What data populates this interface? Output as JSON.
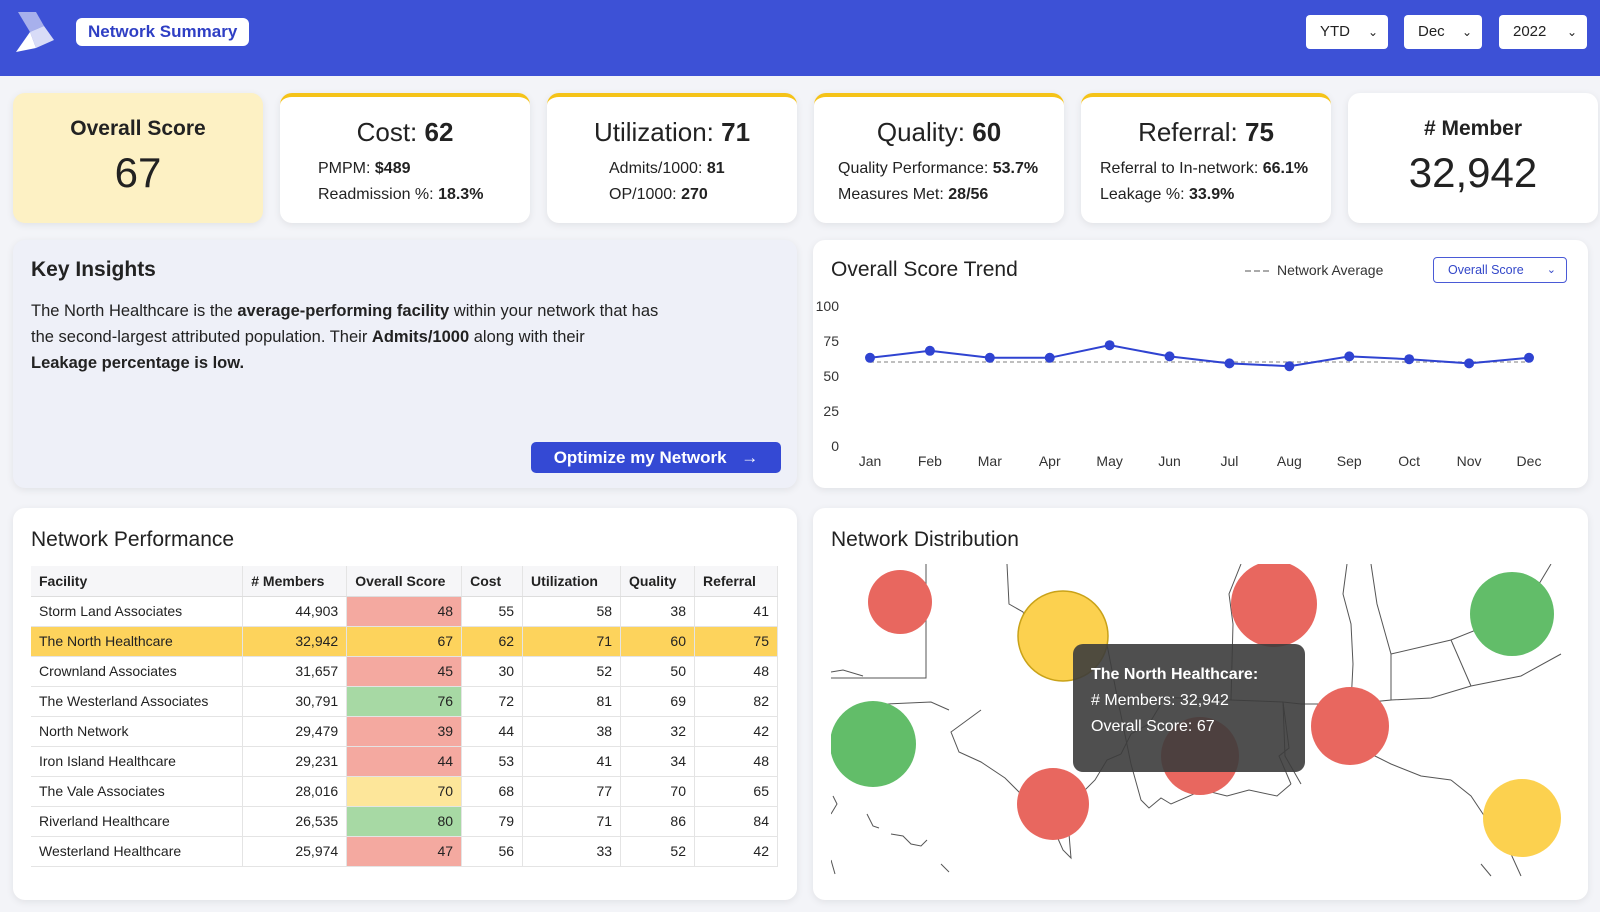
{
  "header": {
    "title": "Network Summary",
    "period": "YTD",
    "month": "Dec",
    "year": "2022"
  },
  "kpis": {
    "overall": {
      "label": "Overall Score",
      "value": "67"
    },
    "cost": {
      "label": "Cost:",
      "value": "62",
      "line1_label": "PMPM:",
      "line1_value": "$489",
      "line2_label": "Readmission %:",
      "line2_value": "18.3%"
    },
    "utilization": {
      "label": "Utilization:",
      "value": "71",
      "line1_label": "Admits/1000:",
      "line1_value": "81",
      "line2_label": "OP/1000:",
      "line2_value": "270"
    },
    "quality": {
      "label": "Quality:",
      "value": "60",
      "line1_label": "Quality Performance:",
      "line1_value": "53.7%",
      "line2_label": "Measures Met:",
      "line2_value": "28/56"
    },
    "referral": {
      "label": "Referral:",
      "value": "75",
      "line1_label": "Referral to In-network:",
      "line1_value": "66.1%",
      "line2_label": "Leakage %:",
      "line2_value": "33.9%"
    },
    "members": {
      "label": "# Member",
      "value": "32,942"
    }
  },
  "insights": {
    "title": "Key Insights",
    "t1": "The North Healthcare is the ",
    "b1": "average-performing facility",
    "t2": " within your network that has the second-largest attributed population. Their ",
    "b2": "Admits/1000",
    "t3": " along with their ",
    "b3": "Leakage percentage is low.",
    "button": "Optimize my Network"
  },
  "trend": {
    "title": "Overall Score Trend",
    "legend": "Network Average",
    "selector": "Overall Score"
  },
  "chart_data": {
    "type": "line",
    "title": "Overall Score Trend",
    "categories": [
      "Jan",
      "Feb",
      "Mar",
      "Apr",
      "May",
      "Jun",
      "Jul",
      "Aug",
      "Sep",
      "Oct",
      "Nov",
      "Dec"
    ],
    "series": [
      {
        "values": [
          63,
          68,
          63,
          63,
          72,
          64,
          59,
          57,
          64,
          62,
          59,
          63
        ]
      },
      {
        "name": "Network Average",
        "values": [
          60,
          60,
          60,
          60,
          60,
          60,
          60,
          60,
          60,
          60,
          60,
          60
        ]
      }
    ],
    "ylim": [
      0,
      100
    ],
    "yticks": [
      0,
      25,
      50,
      75,
      100
    ],
    "grid": false,
    "legend": "top-right"
  },
  "performance": {
    "title": "Network Performance",
    "columns": [
      "Facility",
      "# Members",
      "Overall Score",
      "Cost",
      "Utilization",
      "Quality",
      "Referral"
    ],
    "rows": [
      [
        "Storm Land Associates",
        "44,903",
        "48",
        "55",
        "58",
        "38",
        "41"
      ],
      [
        "The North Healthcare",
        "32,942",
        "67",
        "62",
        "71",
        "60",
        "75"
      ],
      [
        "Crownland Associates",
        "31,657",
        "45",
        "30",
        "52",
        "50",
        "48"
      ],
      [
        "The Westerland Associates",
        "30,791",
        "76",
        "72",
        "81",
        "69",
        "82"
      ],
      [
        "North Network",
        "29,479",
        "39",
        "44",
        "38",
        "32",
        "42"
      ],
      [
        "Iron Island Healthcare",
        "29,231",
        "44",
        "53",
        "41",
        "34",
        "48"
      ],
      [
        "The Vale Associates",
        "28,016",
        "70",
        "68",
        "77",
        "70",
        "65"
      ],
      [
        "Riverland Healthcare",
        "26,535",
        "80",
        "79",
        "71",
        "86",
        "84"
      ],
      [
        "Westerland Healthcare",
        "25,974",
        "47",
        "56",
        "33",
        "52",
        "42"
      ]
    ],
    "score_colors": [
      "#f4a9a0",
      "#fdd35c",
      "#f4a9a0",
      "#a7d9a4",
      "#f4a9a0",
      "#f4a9a0",
      "#fde69a",
      "#a7d9a4",
      "#f4a9a0"
    ],
    "highlight_row": 1
  },
  "distribution": {
    "title": "Network Distribution",
    "tooltip_title": "The North Healthcare:",
    "tooltip_line1": "# Members: 32,942",
    "tooltip_line2": "Overall Score: 67"
  },
  "colors": {
    "brand": "#3d51d6",
    "accent": "#f5c318",
    "red": "#e8675f",
    "green": "#62bd69",
    "yellow": "#fcd14f"
  }
}
